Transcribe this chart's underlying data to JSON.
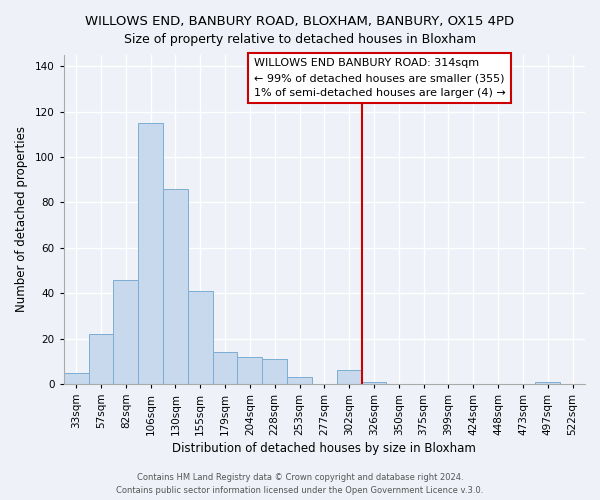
{
  "title": "WILLOWS END, BANBURY ROAD, BLOXHAM, BANBURY, OX15 4PD",
  "subtitle": "Size of property relative to detached houses in Bloxham",
  "xlabel": "Distribution of detached houses by size in Bloxham",
  "ylabel": "Number of detached properties",
  "bar_labels": [
    "33sqm",
    "57sqm",
    "82sqm",
    "106sqm",
    "130sqm",
    "155sqm",
    "179sqm",
    "204sqm",
    "228sqm",
    "253sqm",
    "277sqm",
    "302sqm",
    "326sqm",
    "350sqm",
    "375sqm",
    "399sqm",
    "424sqm",
    "448sqm",
    "473sqm",
    "497sqm",
    "522sqm"
  ],
  "bar_heights": [
    5,
    22,
    46,
    115,
    86,
    41,
    14,
    12,
    11,
    3,
    0,
    6,
    1,
    0,
    0,
    0,
    0,
    0,
    0,
    1,
    0
  ],
  "bar_color": "#c8d9ee",
  "bar_edge_color": "#7badd4",
  "ylim": [
    0,
    145
  ],
  "yticks": [
    0,
    20,
    40,
    60,
    80,
    100,
    120,
    140
  ],
  "vline_x_index": 11.5,
  "vline_color": "#cc0000",
  "legend_title": "WILLOWS END BANBURY ROAD: 314sqm",
  "legend_line1": "← 99% of detached houses are smaller (355)",
  "legend_line2": "1% of semi-detached houses are larger (4) →",
  "footer1": "Contains HM Land Registry data © Crown copyright and database right 2024.",
  "footer2": "Contains public sector information licensed under the Open Government Licence v.3.0.",
  "background_color": "#eef2f8",
  "plot_bg_color": "#eef2f8",
  "grid_color": "#ffffff",
  "title_fontsize": 9.5,
  "subtitle_fontsize": 9.0,
  "axis_label_fontsize": 8.5,
  "tick_fontsize": 7.5,
  "legend_fontsize": 8.0,
  "footer_fontsize": 6.0
}
